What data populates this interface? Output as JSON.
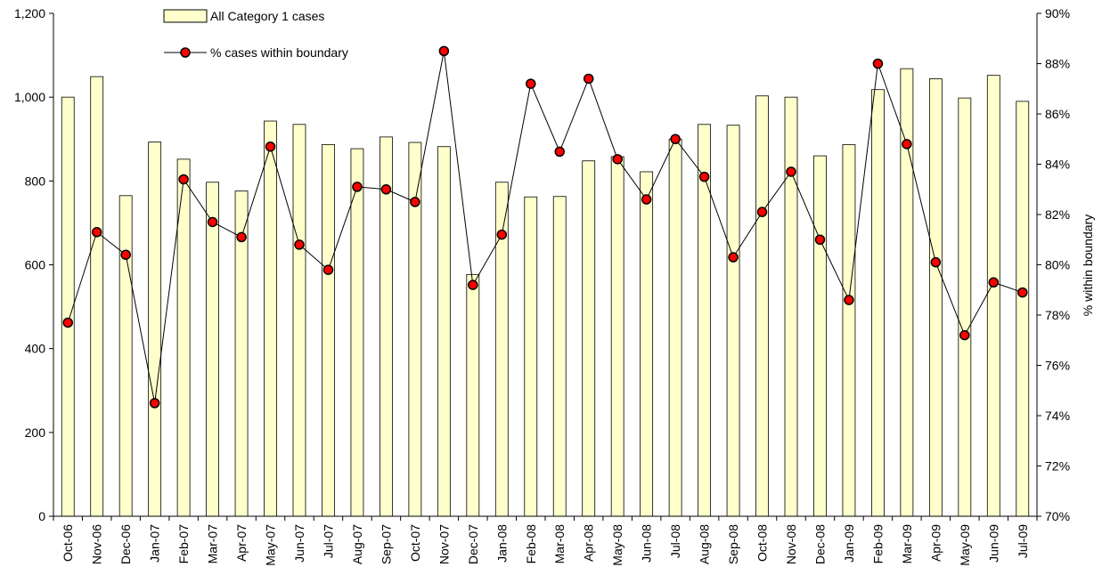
{
  "chart_data": {
    "type": "bar+line",
    "title": "",
    "categories": [
      "Oct-06",
      "Nov-06",
      "Dec-06",
      "Jan-07",
      "Feb-07",
      "Mar-07",
      "Apr-07",
      "May-07",
      "Jun-07",
      "Jul-07",
      "Aug-07",
      "Sep-07",
      "Oct-07",
      "Nov-07",
      "Dec-07",
      "Jan-08",
      "Feb-08",
      "Mar-08",
      "Apr-08",
      "May-08",
      "Jun-08",
      "Jul-08",
      "Aug-08",
      "Sep-08",
      "Oct-08",
      "Nov-08",
      "Dec-08",
      "Jan-09",
      "Feb-09",
      "Mar-09",
      "Apr-09",
      "May-09",
      "Jun-09",
      "Jul-09"
    ],
    "series": [
      {
        "name": "All Category 1 cases",
        "type": "bar",
        "axis": "left",
        "color": "#ffffcc",
        "values": [
          1000,
          1049,
          765,
          893,
          852,
          797,
          776,
          943,
          935,
          887,
          877,
          905,
          892,
          882,
          577,
          797,
          762,
          763,
          848,
          858,
          822,
          900,
          935,
          933,
          1003,
          1000,
          860,
          887,
          1018,
          1068,
          1044,
          998,
          1052,
          990
        ]
      },
      {
        "name": "% cases within boundary",
        "type": "line",
        "axis": "right",
        "color": "#ff0000",
        "values": [
          77.7,
          81.3,
          80.4,
          74.5,
          83.4,
          81.7,
          81.1,
          84.7,
          80.8,
          79.8,
          83.1,
          83.0,
          82.5,
          88.5,
          79.2,
          81.2,
          87.2,
          84.5,
          87.4,
          84.2,
          82.6,
          85.0,
          83.5,
          80.3,
          82.1,
          83.7,
          81.0,
          78.6,
          88.0,
          84.8,
          80.1,
          77.2,
          79.3,
          78.9
        ]
      }
    ],
    "y_left": {
      "min": 0,
      "max": 1200,
      "ticks": [
        0,
        200,
        400,
        600,
        800,
        "1,000",
        "1,200"
      ]
    },
    "y_right": {
      "min": 70,
      "max": 90,
      "ticks": [
        "70%",
        "72%",
        "74%",
        "76%",
        "78%",
        "80%",
        "82%",
        "84%",
        "86%",
        "88%",
        "90%"
      ],
      "label": "% within boundary"
    },
    "grid": false,
    "legend_position": "top-left"
  }
}
